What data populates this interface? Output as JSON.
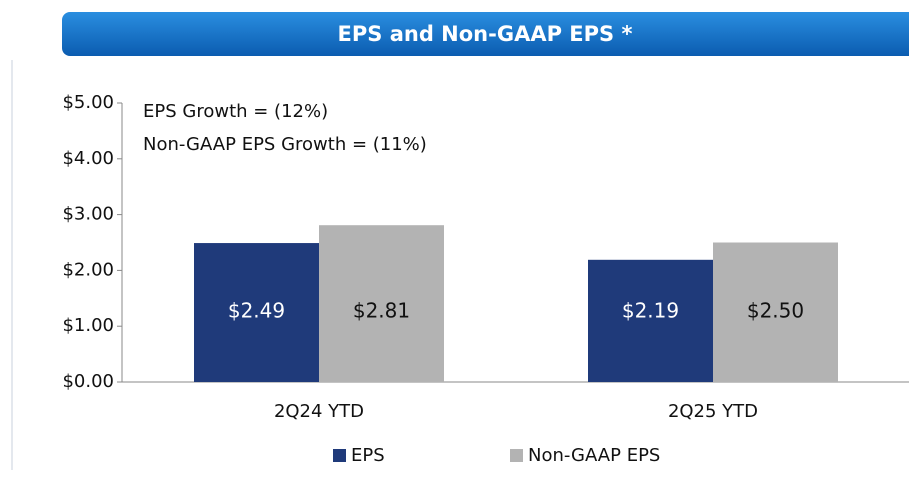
{
  "chart_data": {
    "type": "bar",
    "title": "EPS and Non-GAAP EPS *",
    "annotations": [
      "EPS Growth = (12%)",
      "Non-GAAP EPS Growth = (11%)"
    ],
    "categories": [
      "2Q24 YTD",
      "2Q25 YTD"
    ],
    "series": [
      {
        "name": "EPS",
        "color": "#1f3a7a",
        "values": [
          2.49,
          2.19
        ],
        "value_labels": [
          "$2.49",
          "$2.19"
        ],
        "label_color": "#ffffff"
      },
      {
        "name": "Non-GAAP EPS",
        "color": "#b3b3b3",
        "values": [
          2.81,
          2.5
        ],
        "value_labels": [
          "$2.81",
          "$2.50"
        ],
        "label_color": "#111111"
      }
    ],
    "ylim": [
      0,
      5
    ],
    "yticks": [
      {
        "value": 0,
        "label": "$0.00"
      },
      {
        "value": 1,
        "label": "$1.00"
      },
      {
        "value": 2,
        "label": "$2.00"
      },
      {
        "value": 3,
        "label": "$3.00"
      },
      {
        "value": 4,
        "label": "$4.00"
      },
      {
        "value": 5,
        "label": "$5.00"
      }
    ],
    "grid": false
  }
}
